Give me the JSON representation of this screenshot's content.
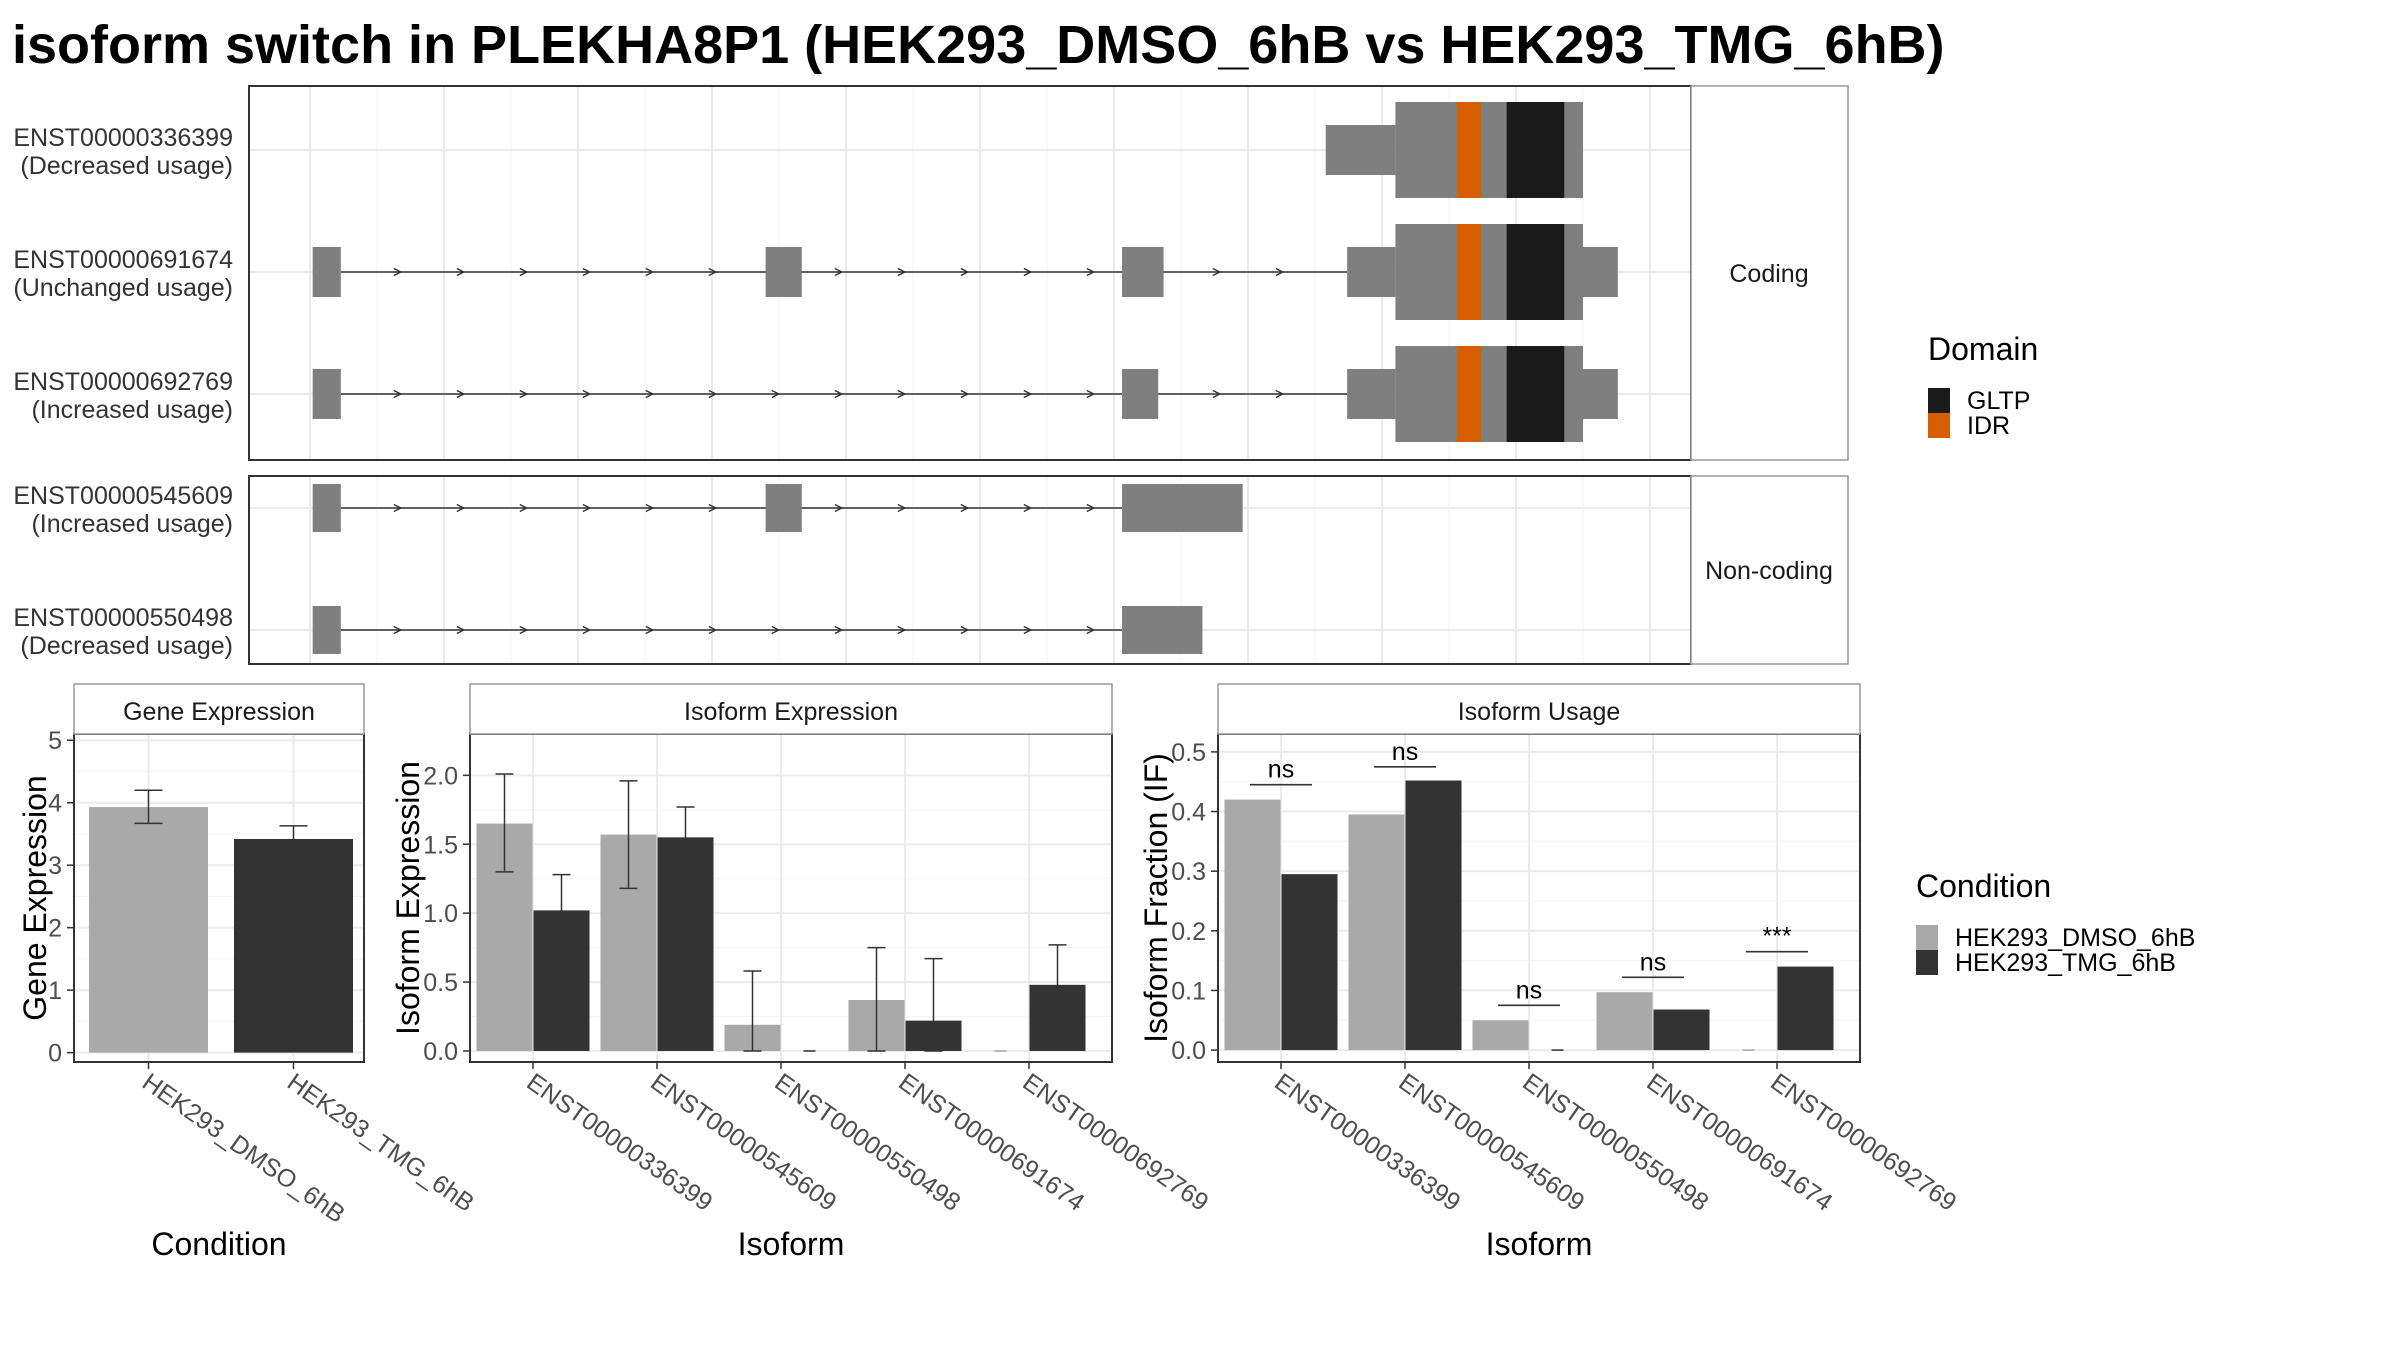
{
  "title": "isoform switch in PLEKHA8P1 (HEK293_DMSO_6hB vs HEK293_TMG_6hB)",
  "colors": {
    "dmso": "#a9a9a9",
    "tmg": "#333333",
    "exon": "#7f7f7f",
    "gltp": "#1a1a1a",
    "idr": "#d55e00"
  },
  "domain_legend": {
    "title": "Domain",
    "items": [
      {
        "label": "GLTP",
        "color": "#1a1a1a"
      },
      {
        "label": "IDR",
        "color": "#d55e00"
      }
    ]
  },
  "condition_legend": {
    "title": "Condition",
    "items": [
      {
        "label": "HEK293_DMSO_6hB",
        "color": "#a9a9a9"
      },
      {
        "label": "HEK293_TMG_6hB",
        "color": "#333333"
      }
    ]
  },
  "chart_data": [
    {
      "type": "gene-structure",
      "facets": [
        {
          "label": "Coding",
          "transcripts": [
            {
              "id": "ENST00000336399",
              "usage": "(Decreased usage)",
              "exons": [
                [
                  0.758,
                  0.81,
                  "utr"
                ],
                [
                  0.81,
                  0.95,
                  "cds"
                ]
              ],
              "intron": null,
              "domains": [
                {
                  "name": "IDR",
                  "range": [
                    0.856,
                    0.874
                  ]
                },
                {
                  "name": "GLTP",
                  "range": [
                    0.893,
                    0.936
                  ]
                }
              ]
            },
            {
              "id": "ENST00000691674",
              "usage": "(Unchanged usage)",
              "exons": [
                [
                  0.002,
                  0.023,
                  "utr"
                ],
                [
                  0.34,
                  0.367,
                  "utr"
                ],
                [
                  0.606,
                  0.637,
                  "utr"
                ],
                [
                  0.774,
                  0.81,
                  "utr"
                ],
                [
                  0.81,
                  0.95,
                  "cds"
                ],
                [
                  0.95,
                  0.976,
                  "utr"
                ]
              ],
              "intron": [
                0.023,
                0.774
              ],
              "domains": [
                {
                  "name": "IDR",
                  "range": [
                    0.856,
                    0.874
                  ]
                },
                {
                  "name": "GLTP",
                  "range": [
                    0.893,
                    0.936
                  ]
                }
              ]
            },
            {
              "id": "ENST00000692769",
              "usage": "(Increased usage)",
              "exons": [
                [
                  0.002,
                  0.023,
                  "utr"
                ],
                [
                  0.606,
                  0.633,
                  "utr"
                ],
                [
                  0.774,
                  0.81,
                  "utr"
                ],
                [
                  0.81,
                  0.95,
                  "cds"
                ],
                [
                  0.95,
                  0.976,
                  "utr"
                ]
              ],
              "intron": [
                0.023,
                0.774
              ],
              "domains": [
                {
                  "name": "IDR",
                  "range": [
                    0.856,
                    0.874
                  ]
                },
                {
                  "name": "GLTP",
                  "range": [
                    0.893,
                    0.936
                  ]
                }
              ]
            }
          ]
        },
        {
          "label": "Non-coding",
          "transcripts": [
            {
              "id": "ENST00000545609",
              "usage": "(Increased usage)",
              "exons": [
                [
                  0.002,
                  0.023,
                  "nc"
                ],
                [
                  0.34,
                  0.367,
                  "nc"
                ],
                [
                  0.606,
                  0.696,
                  "nc"
                ]
              ],
              "intron": [
                0.023,
                0.606
              ],
              "domains": []
            },
            {
              "id": "ENST00000550498",
              "usage": "(Decreased usage)",
              "exons": [
                [
                  0.002,
                  0.023,
                  "nc"
                ],
                [
                  0.606,
                  0.666,
                  "nc"
                ]
              ],
              "intron": [
                0.023,
                0.606
              ],
              "domains": []
            }
          ]
        }
      ]
    },
    {
      "type": "bar",
      "title": "Gene Expression",
      "xlabel": "Condition",
      "ylabel": "Gene Expression",
      "ylim": [
        -0.15,
        5.1
      ],
      "yticks": [
        0,
        1,
        2,
        3,
        4,
        5
      ],
      "categories": [
        "HEK293_DMSO_6hB",
        "HEK293_TMG_6hB"
      ],
      "values": [
        3.93,
        3.42
      ],
      "errors": [
        [
          3.67,
          4.2
        ],
        [
          3.28,
          3.63
        ]
      ]
    },
    {
      "type": "bar",
      "title": "Isoform Expression",
      "xlabel": "Isoform",
      "ylabel": "Isoform Expression",
      "ylim": [
        -0.08,
        2.3
      ],
      "yticks": [
        0.0,
        0.5,
        1.0,
        1.5,
        2.0
      ],
      "categories": [
        "ENST00000336399",
        "ENST00000545609",
        "ENST00000550498",
        "ENST00000691674",
        "ENST00000692769"
      ],
      "series": [
        {
          "name": "HEK293_DMSO_6hB",
          "values": [
            1.65,
            1.57,
            0.19,
            0.37,
            0.0
          ],
          "errors": [
            [
              1.3,
              2.01
            ],
            [
              1.18,
              1.96
            ],
            [
              0.0,
              0.58
            ],
            [
              0.0,
              0.75
            ],
            null
          ]
        },
        {
          "name": "HEK293_TMG_6hB",
          "values": [
            1.02,
            1.55,
            0.0,
            0.22,
            0.48
          ],
          "errors": [
            [
              0.76,
              1.28
            ],
            [
              1.35,
              1.77
            ],
            null,
            [
              0.0,
              0.67
            ],
            [
              0.2,
              0.77
            ]
          ]
        }
      ]
    },
    {
      "type": "bar",
      "title": "Isoform Usage",
      "xlabel": "Isoform",
      "ylabel": "Isoform Fraction (IF)",
      "ylim": [
        -0.02,
        0.53
      ],
      "yticks": [
        0.0,
        0.1,
        0.2,
        0.3,
        0.4,
        0.5
      ],
      "categories": [
        "ENST00000336399",
        "ENST00000545609",
        "ENST00000550498",
        "ENST00000691674",
        "ENST00000692769"
      ],
      "series": [
        {
          "name": "HEK293_DMSO_6hB",
          "values": [
            0.42,
            0.395,
            0.05,
            0.097,
            0.0
          ]
        },
        {
          "name": "HEK293_TMG_6hB",
          "values": [
            0.295,
            0.452,
            0.0,
            0.068,
            0.14
          ]
        }
      ],
      "significance": [
        {
          "label": "ns",
          "y": 0.445
        },
        {
          "label": "ns",
          "y": 0.475
        },
        {
          "label": "ns",
          "y": 0.075
        },
        {
          "label": "ns",
          "y": 0.122
        },
        {
          "label": "***",
          "y": 0.165
        }
      ]
    }
  ]
}
